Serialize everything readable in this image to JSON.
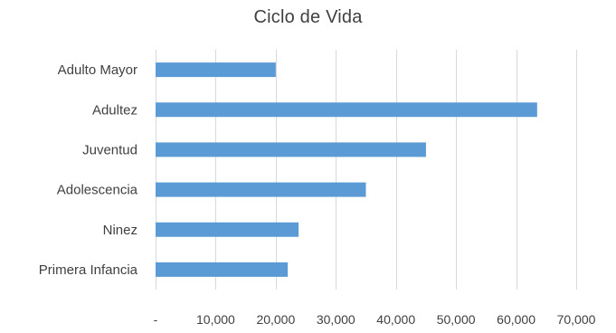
{
  "chart_data": {
    "type": "bar",
    "orientation": "horizontal",
    "title": "Ciclo de Vida",
    "categories": [
      "Adulto Mayor",
      "Adultez",
      "Juventud",
      "Adolescencia",
      "Ninez",
      "Primera Infancia"
    ],
    "values": [
      20000,
      63500,
      45000,
      35000,
      23800,
      22000
    ],
    "xlim": [
      0,
      70000
    ],
    "x_ticks": [
      0,
      10000,
      20000,
      30000,
      40000,
      50000,
      60000,
      70000
    ],
    "x_tick_labels": [
      "-",
      "10,000",
      "20,000",
      "30,000",
      "40,000",
      "50,000",
      "60,000",
      "70,000"
    ],
    "bar_color": "#5b9bd5",
    "grid": true,
    "legend": "none"
  }
}
